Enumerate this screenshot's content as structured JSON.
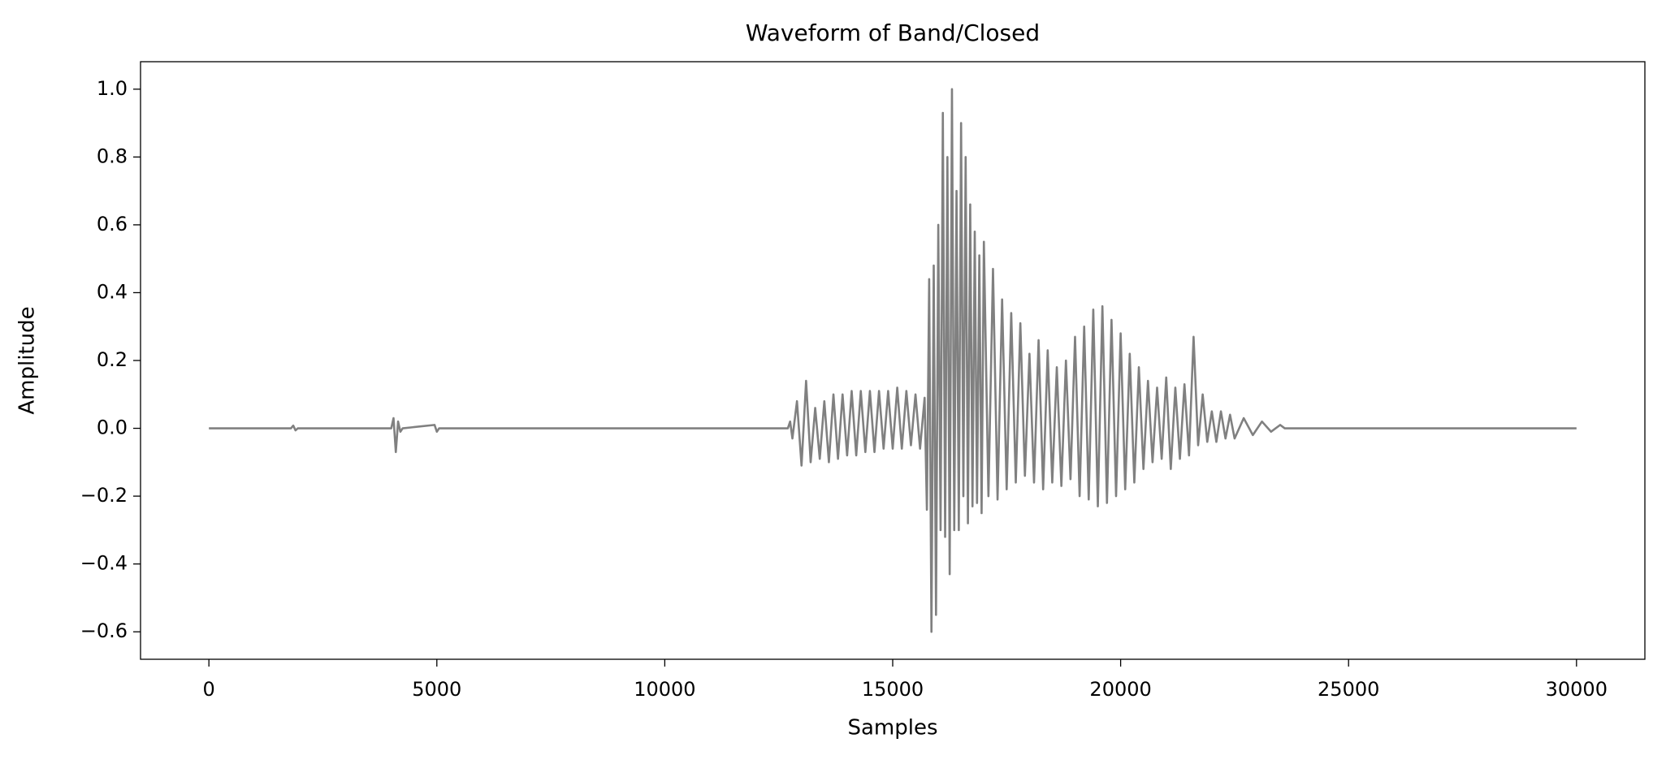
{
  "chart_data": {
    "type": "line",
    "title": "Waveform of Band/Closed",
    "xlabel": "Samples",
    "ylabel": "Amplitude",
    "color": "#808080",
    "xlim": [
      -1500,
      31500
    ],
    "ylim": [
      -0.681,
      1.081
    ],
    "xticks": [
      0,
      5000,
      10000,
      15000,
      20000,
      25000,
      30000
    ],
    "yticks": [
      {
        "value": -0.6,
        "label": "−0.6"
      },
      {
        "value": -0.4,
        "label": "−0.4"
      },
      {
        "value": -0.2,
        "label": "−0.2"
      },
      {
        "value": 0,
        "label": "0.0"
      },
      0.2,
      0.4,
      0.6,
      0.8,
      {
        "value": 1,
        "label": "1.0"
      }
    ],
    "x": [
      0,
      1800,
      1850,
      1900,
      1950,
      4000,
      4050,
      4100,
      4150,
      4200,
      4250,
      4950,
      5000,
      5050,
      12700,
      12750,
      12800,
      12900,
      13000,
      13100,
      13200,
      13300,
      13400,
      13500,
      13600,
      13700,
      13800,
      13900,
      14000,
      14100,
      14200,
      14300,
      14400,
      14500,
      14600,
      14700,
      14800,
      14900,
      15000,
      15100,
      15200,
      15300,
      15400,
      15500,
      15600,
      15700,
      15750,
      15800,
      15850,
      15900,
      15950,
      16000,
      16050,
      16100,
      16150,
      16200,
      16250,
      16300,
      16350,
      16400,
      16450,
      16500,
      16550,
      16600,
      16650,
      16700,
      16750,
      16800,
      16850,
      16900,
      16950,
      17000,
      17100,
      17200,
      17300,
      17400,
      17500,
      17600,
      17700,
      17800,
      17900,
      18000,
      18100,
      18200,
      18300,
      18400,
      18500,
      18600,
      18700,
      18800,
      18900,
      19000,
      19100,
      19200,
      19300,
      19400,
      19500,
      19600,
      19700,
      19800,
      19900,
      20000,
      20100,
      20200,
      20300,
      20400,
      20500,
      20600,
      20700,
      20800,
      20900,
      21000,
      21100,
      21200,
      21300,
      21400,
      21500,
      21600,
      21700,
      21800,
      21900,
      22000,
      22100,
      22200,
      22300,
      22400,
      22500,
      22700,
      22900,
      23100,
      23300,
      23500,
      23600,
      30000
    ],
    "values": [
      0,
      0,
      0.008,
      -0.006,
      0,
      0,
      0.03,
      -0.07,
      0.02,
      -0.01,
      0,
      0.01,
      -0.01,
      0,
      0,
      0.02,
      -0.03,
      0.08,
      -0.11,
      0.14,
      -0.1,
      0.06,
      -0.09,
      0.08,
      -0.1,
      0.1,
      -0.09,
      0.1,
      -0.08,
      0.11,
      -0.08,
      0.11,
      -0.07,
      0.11,
      -0.07,
      0.11,
      -0.06,
      0.11,
      -0.06,
      0.12,
      -0.06,
      0.11,
      -0.05,
      0.1,
      -0.06,
      0.09,
      -0.24,
      0.44,
      -0.6,
      0.48,
      -0.55,
      0.6,
      -0.3,
      0.93,
      -0.32,
      0.8,
      -0.43,
      1.0,
      -0.3,
      0.7,
      -0.3,
      0.9,
      -0.2,
      0.8,
      -0.28,
      0.66,
      -0.23,
      0.58,
      -0.22,
      0.51,
      -0.25,
      0.55,
      -0.2,
      0.47,
      -0.21,
      0.38,
      -0.18,
      0.34,
      -0.16,
      0.31,
      -0.14,
      0.22,
      -0.16,
      0.26,
      -0.18,
      0.23,
      -0.16,
      0.18,
      -0.17,
      0.2,
      -0.15,
      0.27,
      -0.2,
      0.3,
      -0.21,
      0.35,
      -0.23,
      0.36,
      -0.22,
      0.32,
      -0.2,
      0.28,
      -0.18,
      0.22,
      -0.16,
      0.18,
      -0.12,
      0.14,
      -0.1,
      0.12,
      -0.09,
      0.15,
      -0.12,
      0.12,
      -0.09,
      0.13,
      -0.08,
      0.27,
      -0.05,
      0.1,
      -0.04,
      0.05,
      -0.04,
      0.05,
      -0.03,
      0.04,
      -0.03,
      0.03,
      -0.02,
      0.02,
      -0.01,
      0.01,
      0,
      0
    ]
  }
}
